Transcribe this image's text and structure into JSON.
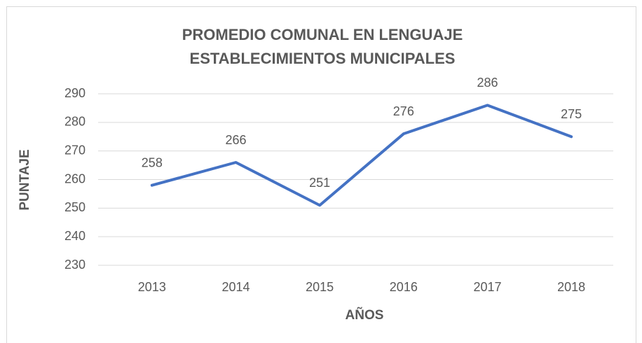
{
  "chart_data": {
    "type": "line",
    "title": "PROMEDIO COMUNAL EN LENGUAJE ESTABLECIMIENTOS MUNICIPALES",
    "x_label": "AÑOS",
    "y_label": "PUNTAJE",
    "categories": [
      "2013",
      "2014",
      "2015",
      "2016",
      "2017",
      "2018"
    ],
    "series": [
      {
        "name": "Puntaje",
        "color": "#4472c4",
        "values": [
          258,
          266,
          251,
          276,
          286,
          275
        ]
      }
    ],
    "ylim": [
      230,
      290
    ],
    "yticks": [
      230,
      240,
      250,
      260,
      270,
      280,
      290
    ],
    "grid": true
  }
}
